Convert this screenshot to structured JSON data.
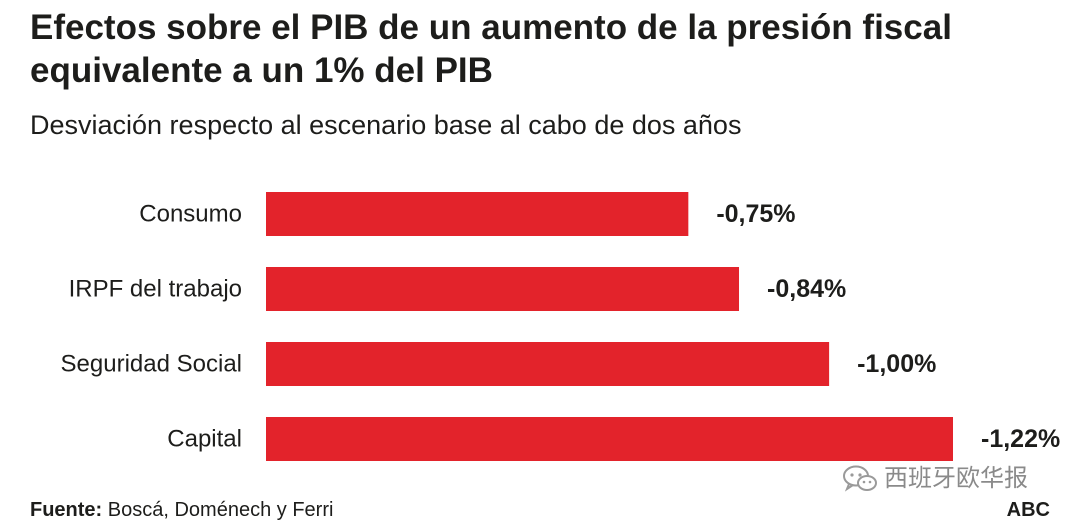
{
  "chart_data": {
    "type": "bar",
    "orientation": "horizontal",
    "title_line1": "Efectos sobre el PIB de un aumento de la presión fiscal",
    "title_line2": "equivalente a un 1% del PIB",
    "subtitle": "Desviación respecto al escenario base al cabo de dos años",
    "categories": [
      "Consumo",
      "IRPF del trabajo",
      "Seguridad Social",
      "Capital"
    ],
    "values": [
      -0.75,
      -0.84,
      -1.0,
      -1.22
    ],
    "value_labels": [
      "-0,75%",
      "-0,84%",
      "-1,00%",
      "-1,22%"
    ],
    "unit": "%",
    "xlim": [
      0,
      -1.22
    ],
    "bar_color": "#e3232b",
    "grid": false,
    "legend": "none"
  },
  "footer": {
    "source_label": "Fuente:",
    "source_text": "Boscá, Doménech y Ferri",
    "brand": "ABC"
  },
  "watermark": {
    "text": "西班牙欧华报",
    "icon": "wechat-icon"
  }
}
